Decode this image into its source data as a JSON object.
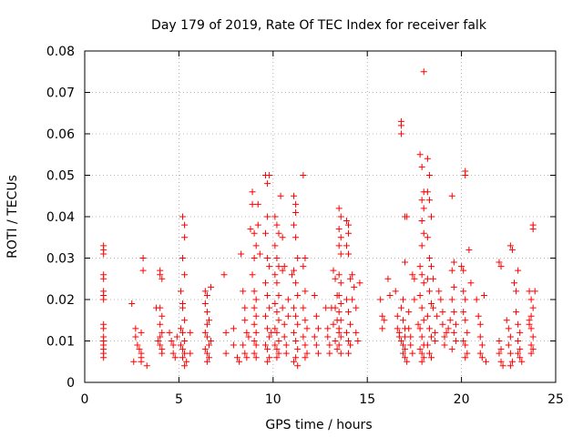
{
  "chart_data": {
    "type": "scatter",
    "title": "Day 179 of 2019, Rate Of TEC Index for receiver falk",
    "xlabel": "GPS time / hours",
    "ylabel": "ROTI / TECUs",
    "xlim": [
      0,
      25
    ],
    "ylim": [
      0,
      0.08
    ],
    "x_ticks": [
      "0",
      "5",
      "10",
      "15",
      "20",
      "25"
    ],
    "y_ticks": [
      "0",
      "0.01",
      "0.02",
      "0.03",
      "0.04",
      "0.05",
      "0.06",
      "0.07",
      "0.08"
    ],
    "grid": true,
    "marker": "+",
    "color": "#ff0000",
    "points": [
      [
        1.0,
        0.033
      ],
      [
        1.0,
        0.032
      ],
      [
        1.0,
        0.031
      ],
      [
        1.0,
        0.026
      ],
      [
        1.0,
        0.025
      ],
      [
        1.0,
        0.022
      ],
      [
        1.0,
        0.021
      ],
      [
        1.0,
        0.02
      ],
      [
        1.0,
        0.014
      ],
      [
        1.0,
        0.013
      ],
      [
        1.0,
        0.011
      ],
      [
        1.0,
        0.01
      ],
      [
        1.0,
        0.009
      ],
      [
        1.0,
        0.008
      ],
      [
        1.0,
        0.007
      ],
      [
        1.0,
        0.006
      ],
      [
        2.5,
        0.019
      ],
      [
        2.7,
        0.013
      ],
      [
        2.7,
        0.011
      ],
      [
        2.8,
        0.009
      ],
      [
        2.9,
        0.008
      ],
      [
        3.0,
        0.007
      ],
      [
        3.0,
        0.006
      ],
      [
        3.0,
        0.005
      ],
      [
        3.1,
        0.03
      ],
      [
        3.1,
        0.027
      ],
      [
        2.6,
        0.005
      ],
      [
        3.3,
        0.004
      ],
      [
        3.0,
        0.012
      ],
      [
        4.0,
        0.027
      ],
      [
        4.0,
        0.026
      ],
      [
        4.1,
        0.025
      ],
      [
        4.0,
        0.018
      ],
      [
        4.1,
        0.016
      ],
      [
        4.0,
        0.014
      ],
      [
        4.1,
        0.012
      ],
      [
        4.0,
        0.011
      ],
      [
        4.0,
        0.009
      ],
      [
        4.1,
        0.008
      ],
      [
        4.1,
        0.007
      ],
      [
        3.8,
        0.018
      ],
      [
        3.9,
        0.01
      ],
      [
        4.5,
        0.012
      ],
      [
        4.6,
        0.01
      ],
      [
        4.7,
        0.009
      ],
      [
        4.7,
        0.007
      ],
      [
        4.8,
        0.006
      ],
      [
        4.9,
        0.011
      ],
      [
        5.2,
        0.04
      ],
      [
        5.3,
        0.038
      ],
      [
        5.3,
        0.035
      ],
      [
        5.2,
        0.03
      ],
      [
        5.3,
        0.026
      ],
      [
        5.1,
        0.022
      ],
      [
        5.2,
        0.019
      ],
      [
        5.2,
        0.018
      ],
      [
        5.3,
        0.015
      ],
      [
        5.1,
        0.013
      ],
      [
        5.2,
        0.012
      ],
      [
        5.3,
        0.01
      ],
      [
        5.1,
        0.009
      ],
      [
        5.2,
        0.008
      ],
      [
        5.3,
        0.007
      ],
      [
        5.2,
        0.006
      ],
      [
        5.4,
        0.005
      ],
      [
        5.3,
        0.004
      ],
      [
        5.6,
        0.012
      ],
      [
        5.6,
        0.007
      ],
      [
        6.4,
        0.022
      ],
      [
        6.5,
        0.021
      ],
      [
        6.4,
        0.019
      ],
      [
        6.5,
        0.017
      ],
      [
        6.6,
        0.015
      ],
      [
        6.5,
        0.014
      ],
      [
        6.4,
        0.012
      ],
      [
        6.5,
        0.011
      ],
      [
        6.6,
        0.009
      ],
      [
        6.4,
        0.008
      ],
      [
        6.5,
        0.007
      ],
      [
        6.6,
        0.006
      ],
      [
        6.5,
        0.005
      ],
      [
        6.7,
        0.023
      ],
      [
        6.7,
        0.01
      ],
      [
        7.4,
        0.026
      ],
      [
        7.5,
        0.012
      ],
      [
        7.5,
        0.007
      ],
      [
        7.9,
        0.013
      ],
      [
        7.9,
        0.009
      ],
      [
        8.1,
        0.006
      ],
      [
        8.2,
        0.005
      ],
      [
        8.3,
        0.031
      ],
      [
        8.4,
        0.022
      ],
      [
        8.5,
        0.018
      ],
      [
        8.5,
        0.015
      ],
      [
        8.6,
        0.012
      ],
      [
        8.7,
        0.011
      ],
      [
        8.4,
        0.009
      ],
      [
        8.5,
        0.007
      ],
      [
        8.6,
        0.006
      ],
      [
        8.9,
        0.046
      ],
      [
        8.9,
        0.043
      ],
      [
        8.8,
        0.037
      ],
      [
        9.0,
        0.036
      ],
      [
        9.1,
        0.033
      ],
      [
        9.0,
        0.03
      ],
      [
        8.9,
        0.026
      ],
      [
        9.0,
        0.022
      ],
      [
        9.1,
        0.02
      ],
      [
        9.0,
        0.018
      ],
      [
        9.1,
        0.016
      ],
      [
        9.0,
        0.014
      ],
      [
        9.1,
        0.012
      ],
      [
        9.0,
        0.01
      ],
      [
        9.1,
        0.009
      ],
      [
        9.0,
        0.007
      ],
      [
        9.1,
        0.006
      ],
      [
        9.2,
        0.043
      ],
      [
        9.2,
        0.038
      ],
      [
        9.3,
        0.031
      ],
      [
        9.6,
        0.05
      ],
      [
        9.7,
        0.048
      ],
      [
        9.8,
        0.05
      ],
      [
        9.7,
        0.04
      ],
      [
        9.6,
        0.036
      ],
      [
        9.7,
        0.03
      ],
      [
        9.8,
        0.028
      ],
      [
        9.6,
        0.024
      ],
      [
        9.7,
        0.021
      ],
      [
        9.8,
        0.018
      ],
      [
        9.6,
        0.016
      ],
      [
        9.7,
        0.013
      ],
      [
        9.8,
        0.011
      ],
      [
        9.6,
        0.009
      ],
      [
        9.7,
        0.008
      ],
      [
        9.8,
        0.006
      ],
      [
        9.7,
        0.005
      ],
      [
        9.9,
        0.012
      ],
      [
        10.1,
        0.04
      ],
      [
        10.2,
        0.038
      ],
      [
        10.3,
        0.036
      ],
      [
        10.1,
        0.033
      ],
      [
        10.2,
        0.03
      ],
      [
        10.3,
        0.028
      ],
      [
        10.1,
        0.026
      ],
      [
        10.2,
        0.024
      ],
      [
        10.3,
        0.021
      ],
      [
        10.1,
        0.019
      ],
      [
        10.2,
        0.017
      ],
      [
        10.3,
        0.015
      ],
      [
        10.1,
        0.013
      ],
      [
        10.2,
        0.012
      ],
      [
        10.3,
        0.01
      ],
      [
        10.1,
        0.009
      ],
      [
        10.2,
        0.008
      ],
      [
        10.3,
        0.007
      ],
      [
        10.2,
        0.006
      ],
      [
        10.4,
        0.045
      ],
      [
        10.5,
        0.035
      ],
      [
        10.5,
        0.027
      ],
      [
        10.5,
        0.018
      ],
      [
        10.6,
        0.014
      ],
      [
        10.6,
        0.011
      ],
      [
        10.7,
        0.009
      ],
      [
        10.7,
        0.007
      ],
      [
        10.6,
        0.028
      ],
      [
        10.8,
        0.02
      ],
      [
        10.8,
        0.016
      ],
      [
        11.1,
        0.045
      ],
      [
        11.2,
        0.043
      ],
      [
        11.2,
        0.041
      ],
      [
        11.1,
        0.038
      ],
      [
        11.2,
        0.035
      ],
      [
        11.3,
        0.03
      ],
      [
        11.1,
        0.027
      ],
      [
        11.2,
        0.024
      ],
      [
        11.3,
        0.021
      ],
      [
        11.1,
        0.018
      ],
      [
        11.2,
        0.016
      ],
      [
        11.3,
        0.014
      ],
      [
        11.1,
        0.012
      ],
      [
        11.2,
        0.01
      ],
      [
        11.3,
        0.008
      ],
      [
        11.2,
        0.006
      ],
      [
        11.1,
        0.005
      ],
      [
        11.3,
        0.004
      ],
      [
        11.0,
        0.026
      ],
      [
        11.6,
        0.05
      ],
      [
        11.7,
        0.03
      ],
      [
        11.6,
        0.028
      ],
      [
        11.7,
        0.022
      ],
      [
        11.6,
        0.018
      ],
      [
        11.7,
        0.015
      ],
      [
        11.8,
        0.013
      ],
      [
        11.6,
        0.011
      ],
      [
        11.7,
        0.009
      ],
      [
        11.8,
        0.007
      ],
      [
        11.7,
        0.006
      ],
      [
        12.2,
        0.021
      ],
      [
        12.3,
        0.016
      ],
      [
        12.4,
        0.013
      ],
      [
        12.2,
        0.011
      ],
      [
        12.3,
        0.009
      ],
      [
        12.4,
        0.007
      ],
      [
        12.8,
        0.018
      ],
      [
        12.9,
        0.013
      ],
      [
        12.9,
        0.011
      ],
      [
        13.0,
        0.009
      ],
      [
        13.0,
        0.007
      ],
      [
        13.1,
        0.018
      ],
      [
        13.2,
        0.014
      ],
      [
        13.2,
        0.027
      ],
      [
        13.3,
        0.025
      ],
      [
        13.4,
        0.021
      ],
      [
        13.3,
        0.018
      ],
      [
        13.4,
        0.015
      ],
      [
        13.5,
        0.012
      ],
      [
        13.3,
        0.01
      ],
      [
        13.4,
        0.008
      ],
      [
        13.5,
        0.042
      ],
      [
        13.6,
        0.04
      ],
      [
        13.5,
        0.037
      ],
      [
        13.6,
        0.035
      ],
      [
        13.5,
        0.033
      ],
      [
        13.6,
        0.031
      ],
      [
        13.5,
        0.026
      ],
      [
        13.6,
        0.024
      ],
      [
        13.5,
        0.021
      ],
      [
        13.6,
        0.019
      ],
      [
        13.5,
        0.017
      ],
      [
        13.6,
        0.015
      ],
      [
        13.5,
        0.013
      ],
      [
        13.6,
        0.011
      ],
      [
        13.5,
        0.009
      ],
      [
        13.6,
        0.007
      ],
      [
        13.9,
        0.039
      ],
      [
        14.0,
        0.038
      ],
      [
        14.0,
        0.036
      ],
      [
        13.9,
        0.033
      ],
      [
        14.0,
        0.031
      ],
      [
        14.1,
        0.025
      ],
      [
        13.9,
        0.02
      ],
      [
        14.0,
        0.017
      ],
      [
        14.1,
        0.014
      ],
      [
        13.9,
        0.012
      ],
      [
        14.0,
        0.01
      ],
      [
        14.1,
        0.009
      ],
      [
        14.0,
        0.007
      ],
      [
        14.2,
        0.026
      ],
      [
        14.2,
        0.02
      ],
      [
        14.3,
        0.023
      ],
      [
        14.4,
        0.018
      ],
      [
        14.4,
        0.012
      ],
      [
        14.5,
        0.01
      ],
      [
        14.6,
        0.024
      ],
      [
        15.7,
        0.02
      ],
      [
        15.8,
        0.016
      ],
      [
        15.8,
        0.013
      ],
      [
        15.9,
        0.015
      ],
      [
        16.1,
        0.025
      ],
      [
        16.2,
        0.021
      ],
      [
        16.5,
        0.022
      ],
      [
        16.6,
        0.016
      ],
      [
        16.6,
        0.013
      ],
      [
        16.7,
        0.012
      ],
      [
        16.7,
        0.011
      ],
      [
        16.8,
        0.063
      ],
      [
        16.8,
        0.062
      ],
      [
        16.8,
        0.06
      ],
      [
        16.9,
        0.02
      ],
      [
        16.8,
        0.018
      ],
      [
        16.9,
        0.015
      ],
      [
        17.0,
        0.013
      ],
      [
        17.0,
        0.011
      ],
      [
        16.8,
        0.01
      ],
      [
        16.9,
        0.009
      ],
      [
        17.0,
        0.008
      ],
      [
        16.9,
        0.007
      ],
      [
        17.0,
        0.006
      ],
      [
        17.1,
        0.005
      ],
      [
        17.0,
        0.029
      ],
      [
        17.0,
        0.04
      ],
      [
        17.1,
        0.04
      ],
      [
        17.2,
        0.017
      ],
      [
        17.2,
        0.013
      ],
      [
        17.3,
        0.011
      ],
      [
        17.3,
        0.009
      ],
      [
        17.4,
        0.007
      ],
      [
        17.4,
        0.026
      ],
      [
        17.5,
        0.025
      ],
      [
        17.5,
        0.02
      ],
      [
        17.8,
        0.055
      ],
      [
        17.9,
        0.052
      ],
      [
        18.0,
        0.046
      ],
      [
        17.9,
        0.044
      ],
      [
        18.0,
        0.042
      ],
      [
        17.9,
        0.039
      ],
      [
        18.0,
        0.036
      ],
      [
        17.9,
        0.033
      ],
      [
        17.8,
        0.028
      ],
      [
        17.9,
        0.026
      ],
      [
        18.0,
        0.024
      ],
      [
        17.8,
        0.021
      ],
      [
        17.9,
        0.018
      ],
      [
        18.0,
        0.015
      ],
      [
        17.8,
        0.013
      ],
      [
        17.9,
        0.011
      ],
      [
        18.0,
        0.009
      ],
      [
        17.8,
        0.008
      ],
      [
        17.9,
        0.007
      ],
      [
        18.0,
        0.006
      ],
      [
        17.9,
        0.005
      ],
      [
        18.0,
        0.075
      ],
      [
        17.7,
        0.014
      ],
      [
        18.2,
        0.054
      ],
      [
        18.3,
        0.05
      ],
      [
        18.2,
        0.046
      ],
      [
        18.3,
        0.044
      ],
      [
        18.4,
        0.04
      ],
      [
        18.2,
        0.035
      ],
      [
        18.3,
        0.03
      ],
      [
        18.4,
        0.028
      ],
      [
        18.2,
        0.025
      ],
      [
        18.3,
        0.022
      ],
      [
        18.4,
        0.019
      ],
      [
        18.2,
        0.016
      ],
      [
        18.3,
        0.013
      ],
      [
        18.4,
        0.011
      ],
      [
        18.2,
        0.009
      ],
      [
        18.3,
        0.007
      ],
      [
        18.4,
        0.006
      ],
      [
        18.5,
        0.025
      ],
      [
        18.5,
        0.018
      ],
      [
        18.6,
        0.012
      ],
      [
        18.6,
        0.01
      ],
      [
        18.7,
        0.016
      ],
      [
        18.8,
        0.022
      ],
      [
        18.9,
        0.02
      ],
      [
        19.0,
        0.017
      ],
      [
        19.0,
        0.014
      ],
      [
        19.1,
        0.011
      ],
      [
        19.1,
        0.009
      ],
      [
        19.2,
        0.012
      ],
      [
        19.3,
        0.013
      ],
      [
        19.4,
        0.015
      ],
      [
        19.5,
        0.045
      ],
      [
        19.6,
        0.029
      ],
      [
        19.5,
        0.027
      ],
      [
        19.6,
        0.023
      ],
      [
        19.5,
        0.02
      ],
      [
        19.6,
        0.017
      ],
      [
        19.7,
        0.014
      ],
      [
        19.6,
        0.012
      ],
      [
        19.7,
        0.01
      ],
      [
        19.5,
        0.008
      ],
      [
        20.0,
        0.028
      ],
      [
        20.1,
        0.027
      ],
      [
        20.2,
        0.051
      ],
      [
        20.2,
        0.05
      ],
      [
        20.1,
        0.022
      ],
      [
        20.2,
        0.02
      ],
      [
        20.1,
        0.017
      ],
      [
        20.2,
        0.015
      ],
      [
        20.3,
        0.012
      ],
      [
        20.1,
        0.01
      ],
      [
        20.2,
        0.009
      ],
      [
        20.3,
        0.007
      ],
      [
        20.2,
        0.006
      ],
      [
        20.4,
        0.032
      ],
      [
        20.5,
        0.024
      ],
      [
        20.8,
        0.02
      ],
      [
        20.9,
        0.016
      ],
      [
        21.0,
        0.014
      ],
      [
        21.0,
        0.011
      ],
      [
        21.1,
        0.009
      ],
      [
        21.0,
        0.007
      ],
      [
        21.1,
        0.006
      ],
      [
        21.2,
        0.021
      ],
      [
        21.3,
        0.005
      ],
      [
        22.0,
        0.029
      ],
      [
        22.1,
        0.028
      ],
      [
        22.0,
        0.01
      ],
      [
        22.1,
        0.008
      ],
      [
        22.0,
        0.007
      ],
      [
        22.1,
        0.005
      ],
      [
        22.2,
        0.004
      ],
      [
        22.4,
        0.015
      ],
      [
        22.5,
        0.013
      ],
      [
        22.6,
        0.011
      ],
      [
        22.5,
        0.009
      ],
      [
        22.6,
        0.007
      ],
      [
        22.7,
        0.005
      ],
      [
        22.6,
        0.004
      ],
      [
        22.6,
        0.033
      ],
      [
        22.7,
        0.032
      ],
      [
        22.8,
        0.024
      ],
      [
        22.9,
        0.022
      ],
      [
        23.0,
        0.027
      ],
      [
        22.9,
        0.017
      ],
      [
        23.0,
        0.014
      ],
      [
        23.1,
        0.012
      ],
      [
        23.0,
        0.01
      ],
      [
        23.1,
        0.008
      ],
      [
        23.0,
        0.007
      ],
      [
        23.1,
        0.006
      ],
      [
        23.2,
        0.005
      ],
      [
        23.6,
        0.022
      ],
      [
        23.7,
        0.02
      ],
      [
        23.8,
        0.018
      ],
      [
        23.7,
        0.016
      ],
      [
        23.6,
        0.015
      ],
      [
        23.7,
        0.013
      ],
      [
        23.8,
        0.011
      ],
      [
        23.7,
        0.009
      ],
      [
        23.8,
        0.008
      ],
      [
        23.7,
        0.007
      ],
      [
        23.8,
        0.038
      ],
      [
        23.8,
        0.037
      ],
      [
        23.6,
        0.014
      ],
      [
        23.9,
        0.022
      ]
    ]
  }
}
